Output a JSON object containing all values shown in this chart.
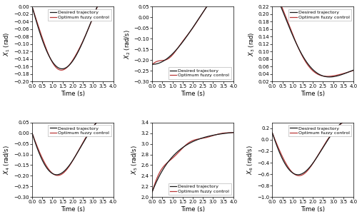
{
  "t_start": 0,
  "t_end": 4,
  "n_points": 500,
  "subplots": [
    {
      "ylabel": "$X_1$ (rad)",
      "xlabel": "Time (s)",
      "ylim": [
        -0.2,
        0.0
      ],
      "yticks": [
        -0.2,
        -0.18,
        -0.16,
        -0.14,
        -0.12,
        -0.1,
        -0.08,
        -0.06,
        -0.04,
        -0.02,
        0.0
      ],
      "legend_loc": "upper right"
    },
    {
      "ylabel": "$X_2$ (rad/s)",
      "xlabel": "Time (s)",
      "ylim": [
        -0.3,
        0.05
      ],
      "yticks": [
        -0.3,
        -0.25,
        -0.2,
        -0.15,
        -0.1,
        -0.05,
        0.0,
        0.05
      ],
      "legend_loc": "lower right"
    },
    {
      "ylabel": "$X_3$ (rad)",
      "xlabel": "Time (s)",
      "ylim": [
        0.02,
        0.22
      ],
      "yticks": [
        0.02,
        0.04,
        0.06,
        0.08,
        0.1,
        0.12,
        0.14,
        0.16,
        0.18,
        0.2,
        0.22
      ],
      "legend_loc": "upper right"
    },
    {
      "ylabel": "$X_4$ (rad/s)",
      "xlabel": "Time (s)",
      "ylim": [
        -0.3,
        0.05
      ],
      "yticks": [
        -0.3,
        -0.25,
        -0.2,
        -0.15,
        -0.1,
        -0.05,
        0.0,
        0.05
      ],
      "legend_loc": "upper right"
    },
    {
      "ylabel": "$X_5$ (rad/s)",
      "xlabel": "Time (s)",
      "ylim": [
        2.0,
        3.4
      ],
      "yticks": [
        2.0,
        2.2,
        2.4,
        2.6,
        2.8,
        3.0,
        3.2,
        3.4
      ],
      "legend_loc": "lower right"
    },
    {
      "ylabel": "$X_6$ (rad/s)",
      "xlabel": "Time (s)",
      "ylim": [
        -1.0,
        0.3
      ],
      "yticks": [
        -1.0,
        -0.8,
        -0.6,
        -0.4,
        -0.2,
        0.0,
        0.2
      ],
      "legend_loc": "upper right"
    }
  ],
  "desired_color": "#1a1a1a",
  "tracking_color": "#b22222",
  "desired_label": "Desired trajectory",
  "tracking_label": "Optimum fuzzy control",
  "legend_fontsize": 4.5,
  "axis_fontsize": 6,
  "tick_fontsize": 5,
  "line_width": 0.9,
  "xticks": [
    0,
    0.5,
    1.0,
    1.5,
    2.0,
    2.5,
    3.0,
    3.5,
    4.0
  ]
}
